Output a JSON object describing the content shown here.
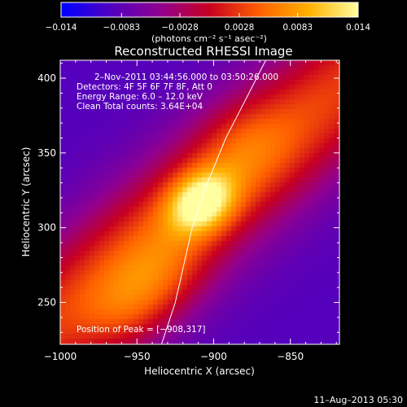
{
  "chart_data": {
    "type": "heatmap",
    "title": "Reconstructed RHESSI Image",
    "xlabel": "Heliocentric X (arcsec)",
    "ylabel": "Heliocentric Y (arcsec)",
    "x_ticks": [
      -1000,
      -950,
      -900,
      -850
    ],
    "y_ticks": [
      250,
      300,
      350,
      400
    ],
    "x_tick_labels": [
      "−1000",
      "−950",
      "−900",
      "−850"
    ],
    "y_tick_labels": [
      "250",
      "300",
      "350",
      "400"
    ],
    "xlim": [
      -1000,
      -818
    ],
    "ylim": [
      222,
      412
    ],
    "peak": {
      "x": -908,
      "y": 317,
      "value": 0.014
    },
    "ridge_angle_deg": 40,
    "limb_curve": [
      [
        -934,
        222
      ],
      [
        -925,
        250
      ],
      [
        -914,
        300
      ],
      [
        -904,
        330
      ],
      [
        -892,
        360
      ],
      [
        -882,
        380
      ],
      [
        -872,
        400
      ],
      [
        -866,
        412
      ]
    ],
    "colorbar": {
      "range": [
        -0.014,
        0.014
      ],
      "ticks": [
        -0.014,
        -0.0083,
        -0.0028,
        0.0028,
        0.0083,
        0.014
      ],
      "tick_labels": [
        "−0.014",
        "−0.0083",
        "−0.0028",
        "0.0028",
        "0.0083",
        "0.014"
      ],
      "unit_label": "(photons cm⁻² s⁻¹ asec⁻²)",
      "colors": [
        "#0000ff",
        "#5000c0",
        "#900090",
        "#c80020",
        "#ff6000",
        "#ffb000",
        "#ffffa0"
      ]
    },
    "annotations": {
      "time_range": "2–Nov–2011 03:44:56.000 to 03:50:26.000",
      "detectors": "Detectors: 4F 5F 6F 7F 8F, Att 0",
      "energy": "Energy Range: 6.0 – 12.0 keV",
      "clean": "Clean     Total counts: 3.64E+04",
      "peak_position": "Position of Peak = [−908,317]"
    },
    "timestamp": "11–Aug–2013 05:30"
  }
}
